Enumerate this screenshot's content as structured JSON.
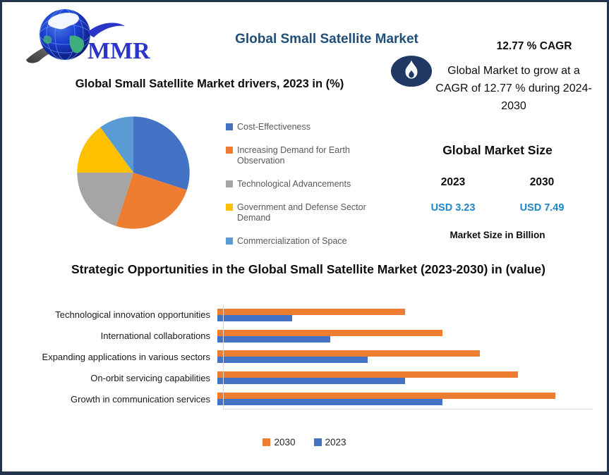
{
  "frame": {
    "background": "#ffffff",
    "border_color": "#22354a"
  },
  "header": {
    "logo_text": "MMR",
    "title": "Global Small Satellite Market",
    "cagr": "12.77 % CAGR",
    "growth_note": "Global Market to grow at a CAGR of 12.77 % during 2024-2030"
  },
  "market_size": {
    "title": "Global Market Size",
    "years": [
      "2023",
      "2030"
    ],
    "values": [
      "USD 3.23",
      "USD 7.49"
    ],
    "footnote": "Market Size in Billion",
    "value_color": "#1c86c8"
  },
  "chart_data": [
    {
      "type": "pie",
      "title": "Global Small Satellite Market drivers, 2023 in (%)",
      "labels": [
        "Cost-Effectiveness",
        "Increasing Demand for Earth Observation",
        "Technological Advancements",
        "Government and Defense Sector Demand",
        "Commercialization of Space"
      ],
      "values": [
        30,
        25,
        20,
        15,
        10
      ],
      "colors": [
        "#4472c4",
        "#ed7d31",
        "#a5a5a5",
        "#ffc000",
        "#5b9bd5"
      ],
      "legend_position": "right",
      "start_angle_deg": 0,
      "direction": "clockwise"
    },
    {
      "type": "bar",
      "orientation": "horizontal",
      "title": "Strategic Opportunities in the Global Small Satellite Market (2023-2030) in (value)",
      "categories": [
        "Technological innovation opportunities",
        "International collaborations",
        "Expanding applications in various sectors",
        "On-orbit servicing capabilities",
        "Growth in communication services"
      ],
      "series": [
        {
          "name": "2030",
          "color": "#ed7d31",
          "values": [
            5,
            6,
            7,
            8,
            9
          ]
        },
        {
          "name": "2023",
          "color": "#4472c4",
          "values": [
            2,
            3,
            4,
            5,
            6
          ]
        }
      ],
      "xlim": [
        0,
        10
      ],
      "grid": false,
      "legend_position": "bottom"
    }
  ]
}
